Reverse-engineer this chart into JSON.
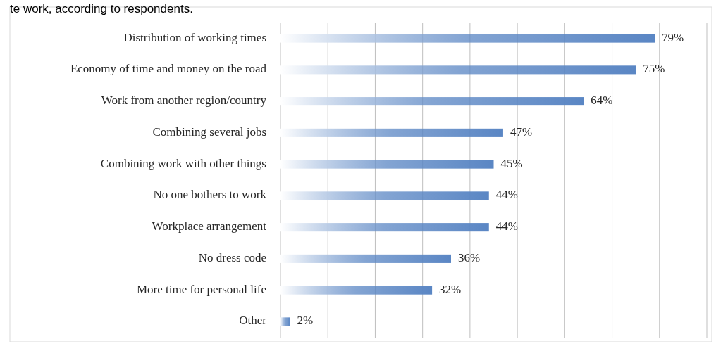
{
  "chart_data": {
    "type": "bar",
    "orientation": "horizontal",
    "title": "te work, according to respondents.",
    "categories": [
      "Distribution of working times",
      "Economy of time and money on the road",
      "Work from another region/country",
      "Combining several jobs",
      "Combining work with other things",
      "No one bothers to work",
      "Workplace arrangement",
      "No dress code",
      "More time for personal life",
      "Other"
    ],
    "values": [
      79,
      75,
      64,
      47,
      45,
      44,
      44,
      36,
      32,
      2
    ],
    "value_labels": [
      "79%",
      "75%",
      "64%",
      "47%",
      "45%",
      "44%",
      "44%",
      "36%",
      "32%",
      "2%"
    ],
    "color": "#5a86c4",
    "xlim": [
      0,
      90
    ],
    "xticks": [
      {
        "value": 0,
        "label": null
      },
      {
        "value": 10,
        "label": null
      },
      {
        "value": 20,
        "label": null
      },
      {
        "value": 30,
        "label": null
      },
      {
        "value": 40,
        "label": null
      },
      {
        "value": 50,
        "label": null
      },
      {
        "value": 60,
        "label": null
      },
      {
        "value": 70,
        "label": null
      },
      {
        "value": 80,
        "label": null
      },
      {
        "value": 90,
        "label": null
      }
    ],
    "grid": "x",
    "tick_labels": "y"
  }
}
